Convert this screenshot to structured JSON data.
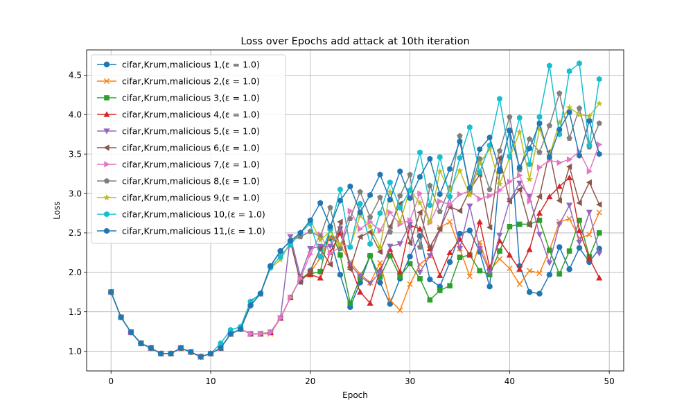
{
  "chart_data": {
    "type": "line",
    "title": "Loss over Epochs add attack at 10th iteration",
    "xlabel": "Epoch",
    "ylabel": "Loss",
    "xlim": [
      -2.45,
      51.45
    ],
    "ylim": [
      0.75,
      4.82
    ],
    "xticks": [
      0,
      10,
      20,
      30,
      40,
      50
    ],
    "yticks": [
      1.0,
      1.5,
      2.0,
      2.5,
      3.0,
      3.5,
      4.0,
      4.5
    ],
    "grid": true,
    "legend_position": "upper-left",
    "x": [
      0,
      1,
      2,
      3,
      4,
      5,
      6,
      7,
      8,
      9,
      10,
      11,
      12,
      13,
      14,
      15,
      16,
      17,
      18,
      19,
      20,
      21,
      22,
      23,
      24,
      25,
      26,
      27,
      28,
      29,
      30,
      31,
      32,
      33,
      34,
      35,
      36,
      37,
      38,
      39,
      40,
      41,
      42,
      43,
      44,
      45,
      46,
      47,
      48,
      49
    ],
    "series": [
      {
        "name": "cifar,Krum,malicious 1,(ε = 1.0)",
        "color": "#1f77b4",
        "marker": "circle",
        "values": [
          1.75,
          1.43,
          1.24,
          1.1,
          1.04,
          0.97,
          0.97,
          1.04,
          0.99,
          0.93,
          0.97,
          1.04,
          1.22,
          1.28,
          1.58,
          1.73,
          2.08,
          2.27,
          2.4,
          1.88,
          2.02,
          2.3,
          2.43,
          1.97,
          1.56,
          1.87,
          2.21,
          1.87,
          1.6,
          1.92,
          2.2,
          2.46,
          1.91,
          1.82,
          2.13,
          2.49,
          2.53,
          2.26,
          1.82,
          3.28,
          3.8,
          2.08,
          1.75,
          1.73,
          1.97,
          2.32,
          2.04,
          2.31,
          2.13,
          2.3
        ]
      },
      {
        "name": "cifar,Krum,malicious 2,(ε = 1.0)",
        "color": "#ff7f0e",
        "marker": "x",
        "values": [
          1.75,
          1.43,
          1.24,
          1.1,
          1.04,
          0.97,
          0.97,
          1.04,
          0.99,
          0.93,
          0.97,
          1.04,
          1.22,
          1.28,
          1.22,
          1.22,
          1.22,
          1.42,
          1.68,
          1.92,
          2.0,
          2.18,
          2.45,
          2.35,
          2.13,
          1.98,
          1.87,
          2.12,
          1.65,
          1.52,
          1.85,
          2.1,
          2.21,
          2.57,
          2.64,
          2.3,
          1.95,
          2.38,
          2.02,
          2.17,
          2.05,
          1.85,
          2.02,
          1.99,
          2.28,
          2.64,
          2.68,
          2.43,
          2.48,
          2.76
        ]
      },
      {
        "name": "cifar,Krum,malicious 3,(ε = 1.0)",
        "color": "#2ca02c",
        "marker": "square",
        "values": [
          1.75,
          1.43,
          1.24,
          1.1,
          1.04,
          0.97,
          0.97,
          1.04,
          0.99,
          0.93,
          0.97,
          1.04,
          1.22,
          1.28,
          1.22,
          1.22,
          1.24,
          1.42,
          1.68,
          1.92,
          1.98,
          2.01,
          2.56,
          2.22,
          1.61,
          1.93,
          2.21,
          1.94,
          2.21,
          1.95,
          2.11,
          1.92,
          1.65,
          1.77,
          1.83,
          2.19,
          2.22,
          2.02,
          1.97,
          2.27,
          2.58,
          2.61,
          2.61,
          2.66,
          2.28,
          1.98,
          2.27,
          2.66,
          2.2,
          2.5
        ]
      },
      {
        "name": "cifar,Krum,malicious 4,(ε = 1.0)",
        "color": "#d62728",
        "marker": "triangle-up",
        "values": [
          1.75,
          1.43,
          1.24,
          1.1,
          1.04,
          0.97,
          0.97,
          1.04,
          0.99,
          0.93,
          0.97,
          1.04,
          1.22,
          1.28,
          1.22,
          1.22,
          1.24,
          1.42,
          1.68,
          1.92,
          1.97,
          1.93,
          2.25,
          2.5,
          2.09,
          1.75,
          1.61,
          2.03,
          2.29,
          2.01,
          2.6,
          2.55,
          2.3,
          1.96,
          2.25,
          2.42,
          2.22,
          2.64,
          2.06,
          2.4,
          2.22,
          2.04,
          2.29,
          2.75,
          2.96,
          3.09,
          3.2,
          2.53,
          2.18,
          1.93
        ]
      },
      {
        "name": "cifar,Krum,malicious 5,(ε = 1.0)",
        "color": "#9467bd",
        "marker": "triangle-down",
        "values": [
          1.75,
          1.43,
          1.24,
          1.1,
          1.04,
          0.97,
          0.97,
          1.04,
          0.99,
          0.93,
          0.97,
          1.04,
          1.22,
          1.28,
          1.22,
          1.22,
          1.24,
          1.42,
          2.45,
          1.95,
          2.3,
          2.33,
          2.33,
          2.55,
          2.1,
          1.95,
          1.86,
          2.0,
          2.33,
          2.36,
          2.61,
          2.0,
          2.21,
          2.54,
          2.95,
          2.3,
          2.84,
          2.3,
          2.0,
          2.47,
          2.91,
          3.13,
          2.96,
          2.48,
          2.12,
          2.61,
          2.85,
          2.38,
          2.76,
          2.24
        ]
      },
      {
        "name": "cifar,Krum,malicious 6,(ε = 1.0)",
        "color": "#8c564b",
        "marker": "triangle-left",
        "values": [
          1.75,
          1.43,
          1.24,
          1.1,
          1.04,
          0.97,
          0.97,
          1.04,
          0.99,
          0.93,
          0.97,
          1.04,
          1.22,
          1.28,
          1.63,
          1.73,
          2.08,
          2.27,
          2.4,
          1.88,
          2.02,
          2.3,
          2.1,
          2.64,
          2.04,
          2.45,
          2.51,
          2.26,
          2.58,
          2.87,
          2.37,
          2.76,
          2.32,
          2.55,
          2.83,
          2.78,
          3.04,
          3.24,
          2.57,
          3.45,
          2.9,
          3.05,
          2.6,
          2.96,
          3.53,
          2.91,
          3.34,
          2.88,
          3.14,
          2.86
        ]
      },
      {
        "name": "cifar,Krum,malicious 7,(ε = 1.0)",
        "color": "#e377c2",
        "marker": "triangle-right",
        "values": [
          1.75,
          1.43,
          1.24,
          1.1,
          1.04,
          0.97,
          0.97,
          1.04,
          0.99,
          0.93,
          0.97,
          1.04,
          1.22,
          1.28,
          1.22,
          1.22,
          1.24,
          1.42,
          1.68,
          1.92,
          2.23,
          2.48,
          2.24,
          2.32,
          2.78,
          2.55,
          2.64,
          2.53,
          2.76,
          2.61,
          2.66,
          3.0,
          2.63,
          2.9,
          2.86,
          2.99,
          3.03,
          2.93,
          2.97,
          3.04,
          3.15,
          3.23,
          2.9,
          3.33,
          3.42,
          3.39,
          3.43,
          3.53,
          3.28,
          3.62
        ]
      },
      {
        "name": "cifar,Krum,malicious 8,(ε = 1.0)",
        "color": "#7f7f7f",
        "marker": "pentagon",
        "values": [
          1.75,
          1.43,
          1.24,
          1.1,
          1.04,
          0.97,
          0.97,
          1.04,
          0.99,
          0.93,
          0.97,
          1.04,
          1.22,
          1.28,
          1.58,
          1.73,
          2.08,
          2.27,
          2.4,
          2.45,
          2.52,
          2.45,
          2.82,
          2.3,
          2.68,
          3.02,
          2.7,
          2.95,
          2.51,
          2.97,
          3.24,
          2.32,
          3.1,
          2.77,
          3.07,
          3.73,
          3.02,
          3.44,
          3.05,
          3.54,
          3.97,
          3.3,
          3.69,
          3.52,
          3.86,
          4.27,
          3.7,
          4.08,
          3.59,
          3.89
        ]
      },
      {
        "name": "cifar,Krum,malicious 9,(ε = 1.0)",
        "color": "#bcbd22",
        "marker": "star",
        "values": [
          1.75,
          1.43,
          1.24,
          1.1,
          1.04,
          0.97,
          0.97,
          1.04,
          0.99,
          0.93,
          0.97,
          1.04,
          1.22,
          1.28,
          1.58,
          1.73,
          2.05,
          2.16,
          2.38,
          2.5,
          2.66,
          2.41,
          2.52,
          2.35,
          2.33,
          2.72,
          2.58,
          2.32,
          3.02,
          2.64,
          3.05,
          2.88,
          2.64,
          3.28,
          3.04,
          3.29,
          2.98,
          3.38,
          3.56,
          3.12,
          3.45,
          3.78,
          3.18,
          3.82,
          3.48,
          3.9,
          4.09,
          4.0,
          3.98,
          4.14
        ]
      },
      {
        "name": "cifar,Krum,malicious 10,(ε = 1.0)",
        "color": "#17becf",
        "marker": "hexagon",
        "values": [
          1.75,
          1.43,
          1.24,
          1.1,
          1.04,
          0.97,
          0.97,
          1.04,
          0.99,
          0.93,
          0.97,
          1.1,
          1.27,
          1.31,
          1.63,
          1.73,
          2.06,
          2.2,
          2.35,
          2.5,
          2.62,
          2.2,
          2.55,
          3.05,
          2.32,
          2.87,
          2.36,
          2.75,
          3.14,
          2.82,
          3.04,
          3.52,
          2.85,
          3.46,
          2.96,
          3.45,
          3.84,
          3.27,
          3.61,
          4.2,
          3.47,
          3.96,
          3.37,
          3.97,
          4.62,
          3.75,
          4.55,
          4.65,
          3.61,
          4.45
        ]
      },
      {
        "name": "cifar,Krum,malicious 11,(ε = 1.0)",
        "color": "#1f77b4",
        "marker": "hexagon",
        "values": [
          1.75,
          1.43,
          1.24,
          1.1,
          1.04,
          0.97,
          0.97,
          1.04,
          0.99,
          0.93,
          0.97,
          1.04,
          1.22,
          1.28,
          1.58,
          1.73,
          2.08,
          2.27,
          2.4,
          2.5,
          2.66,
          2.88,
          2.58,
          2.91,
          3.09,
          2.76,
          2.98,
          3.24,
          2.92,
          3.28,
          2.94,
          3.21,
          3.44,
          2.99,
          3.31,
          3.66,
          3.07,
          3.56,
          3.71,
          3.3,
          3.79,
          3.33,
          3.57,
          3.89,
          3.46,
          3.81,
          4.03,
          3.48,
          3.92,
          3.5
        ]
      }
    ]
  }
}
